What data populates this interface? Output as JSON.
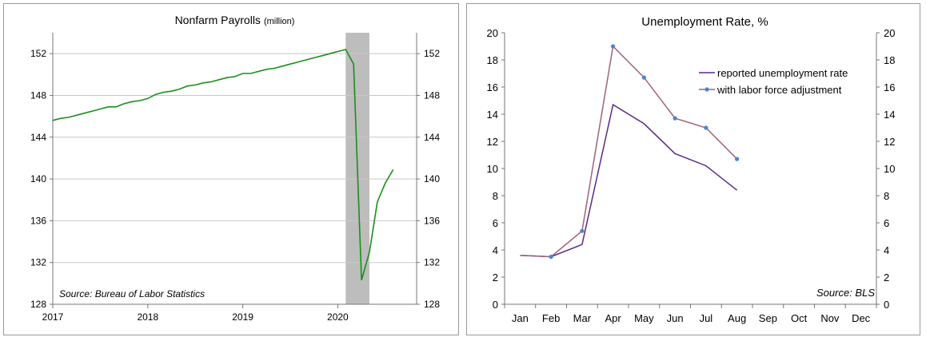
{
  "chart_data": [
    {
      "type": "line",
      "title": "Nonfarm Payrolls",
      "title_suffix": "(million)",
      "xlim": [
        2017,
        2020.83
      ],
      "ylim": [
        128,
        154
      ],
      "x_ticks": [
        2017,
        2018,
        2019,
        2020
      ],
      "x_tick_labels": [
        "2017",
        "2018",
        "2019",
        "2020"
      ],
      "y_ticks": [
        128,
        132,
        136,
        140,
        144,
        148,
        152
      ],
      "y_tick_labels": [
        "128",
        "132",
        "136",
        "140",
        "144",
        "148",
        "152"
      ],
      "grid": "horizontal",
      "axes": "left-and-right",
      "shaded_region": [
        2020.083,
        2020.333
      ],
      "annotation": "Source: Bureau of Labor Statistics",
      "series": [
        {
          "color": "#1a8f1a",
          "x": [
            2017.0,
            2017.083,
            2017.167,
            2017.25,
            2017.333,
            2017.417,
            2017.5,
            2017.583,
            2017.667,
            2017.75,
            2017.833,
            2017.917,
            2018.0,
            2018.083,
            2018.167,
            2018.25,
            2018.333,
            2018.417,
            2018.5,
            2018.583,
            2018.667,
            2018.75,
            2018.833,
            2018.917,
            2019.0,
            2019.083,
            2019.167,
            2019.25,
            2019.333,
            2019.417,
            2019.5,
            2019.583,
            2019.667,
            2019.75,
            2019.833,
            2019.917,
            2020.0,
            2020.083,
            2020.167,
            2020.25,
            2020.333,
            2020.417,
            2020.5,
            2020.583
          ],
          "values": [
            145.6,
            145.8,
            145.9,
            146.1,
            146.3,
            146.5,
            146.7,
            146.9,
            146.9,
            147.2,
            147.4,
            147.5,
            147.7,
            148.1,
            148.3,
            148.4,
            148.6,
            148.9,
            149.0,
            149.2,
            149.3,
            149.5,
            149.7,
            149.8,
            150.1,
            150.1,
            150.3,
            150.5,
            150.6,
            150.8,
            151.0,
            151.2,
            151.4,
            151.6,
            151.8,
            152.0,
            152.2,
            152.4,
            151.0,
            130.3,
            133.0,
            137.8,
            139.6,
            140.9
          ]
        }
      ]
    },
    {
      "type": "line",
      "title": "Unemployment Rate, %",
      "categories": [
        "Jan",
        "Feb",
        "Mar",
        "Apr",
        "May",
        "Jun",
        "Jul",
        "Aug",
        "Sep",
        "Oct",
        "Nov",
        "Dec"
      ],
      "ylim": [
        0,
        20
      ],
      "y_ticks": [
        0,
        2,
        4,
        6,
        8,
        10,
        12,
        14,
        16,
        18,
        20
      ],
      "y_tick_labels": [
        "0",
        "2",
        "4",
        "6",
        "8",
        "10",
        "12",
        "14",
        "16",
        "18",
        "20"
      ],
      "grid": "none",
      "axes": "left-and-right",
      "legend": "top-right",
      "annotation": "Source: BLS",
      "series": [
        {
          "name": "reported unemployment rate",
          "color": "#5b2a86",
          "marker": "none",
          "values": [
            3.6,
            3.5,
            4.4,
            14.7,
            13.3,
            11.1,
            10.2,
            8.4,
            null,
            null,
            null,
            null
          ]
        },
        {
          "name": "with labor force adjustment",
          "color": "#a0627a",
          "marker": "#4a86c8",
          "values": [
            3.6,
            3.5,
            5.4,
            19.0,
            16.7,
            13.7,
            13.0,
            10.7,
            null,
            null,
            null,
            null
          ]
        }
      ]
    }
  ]
}
